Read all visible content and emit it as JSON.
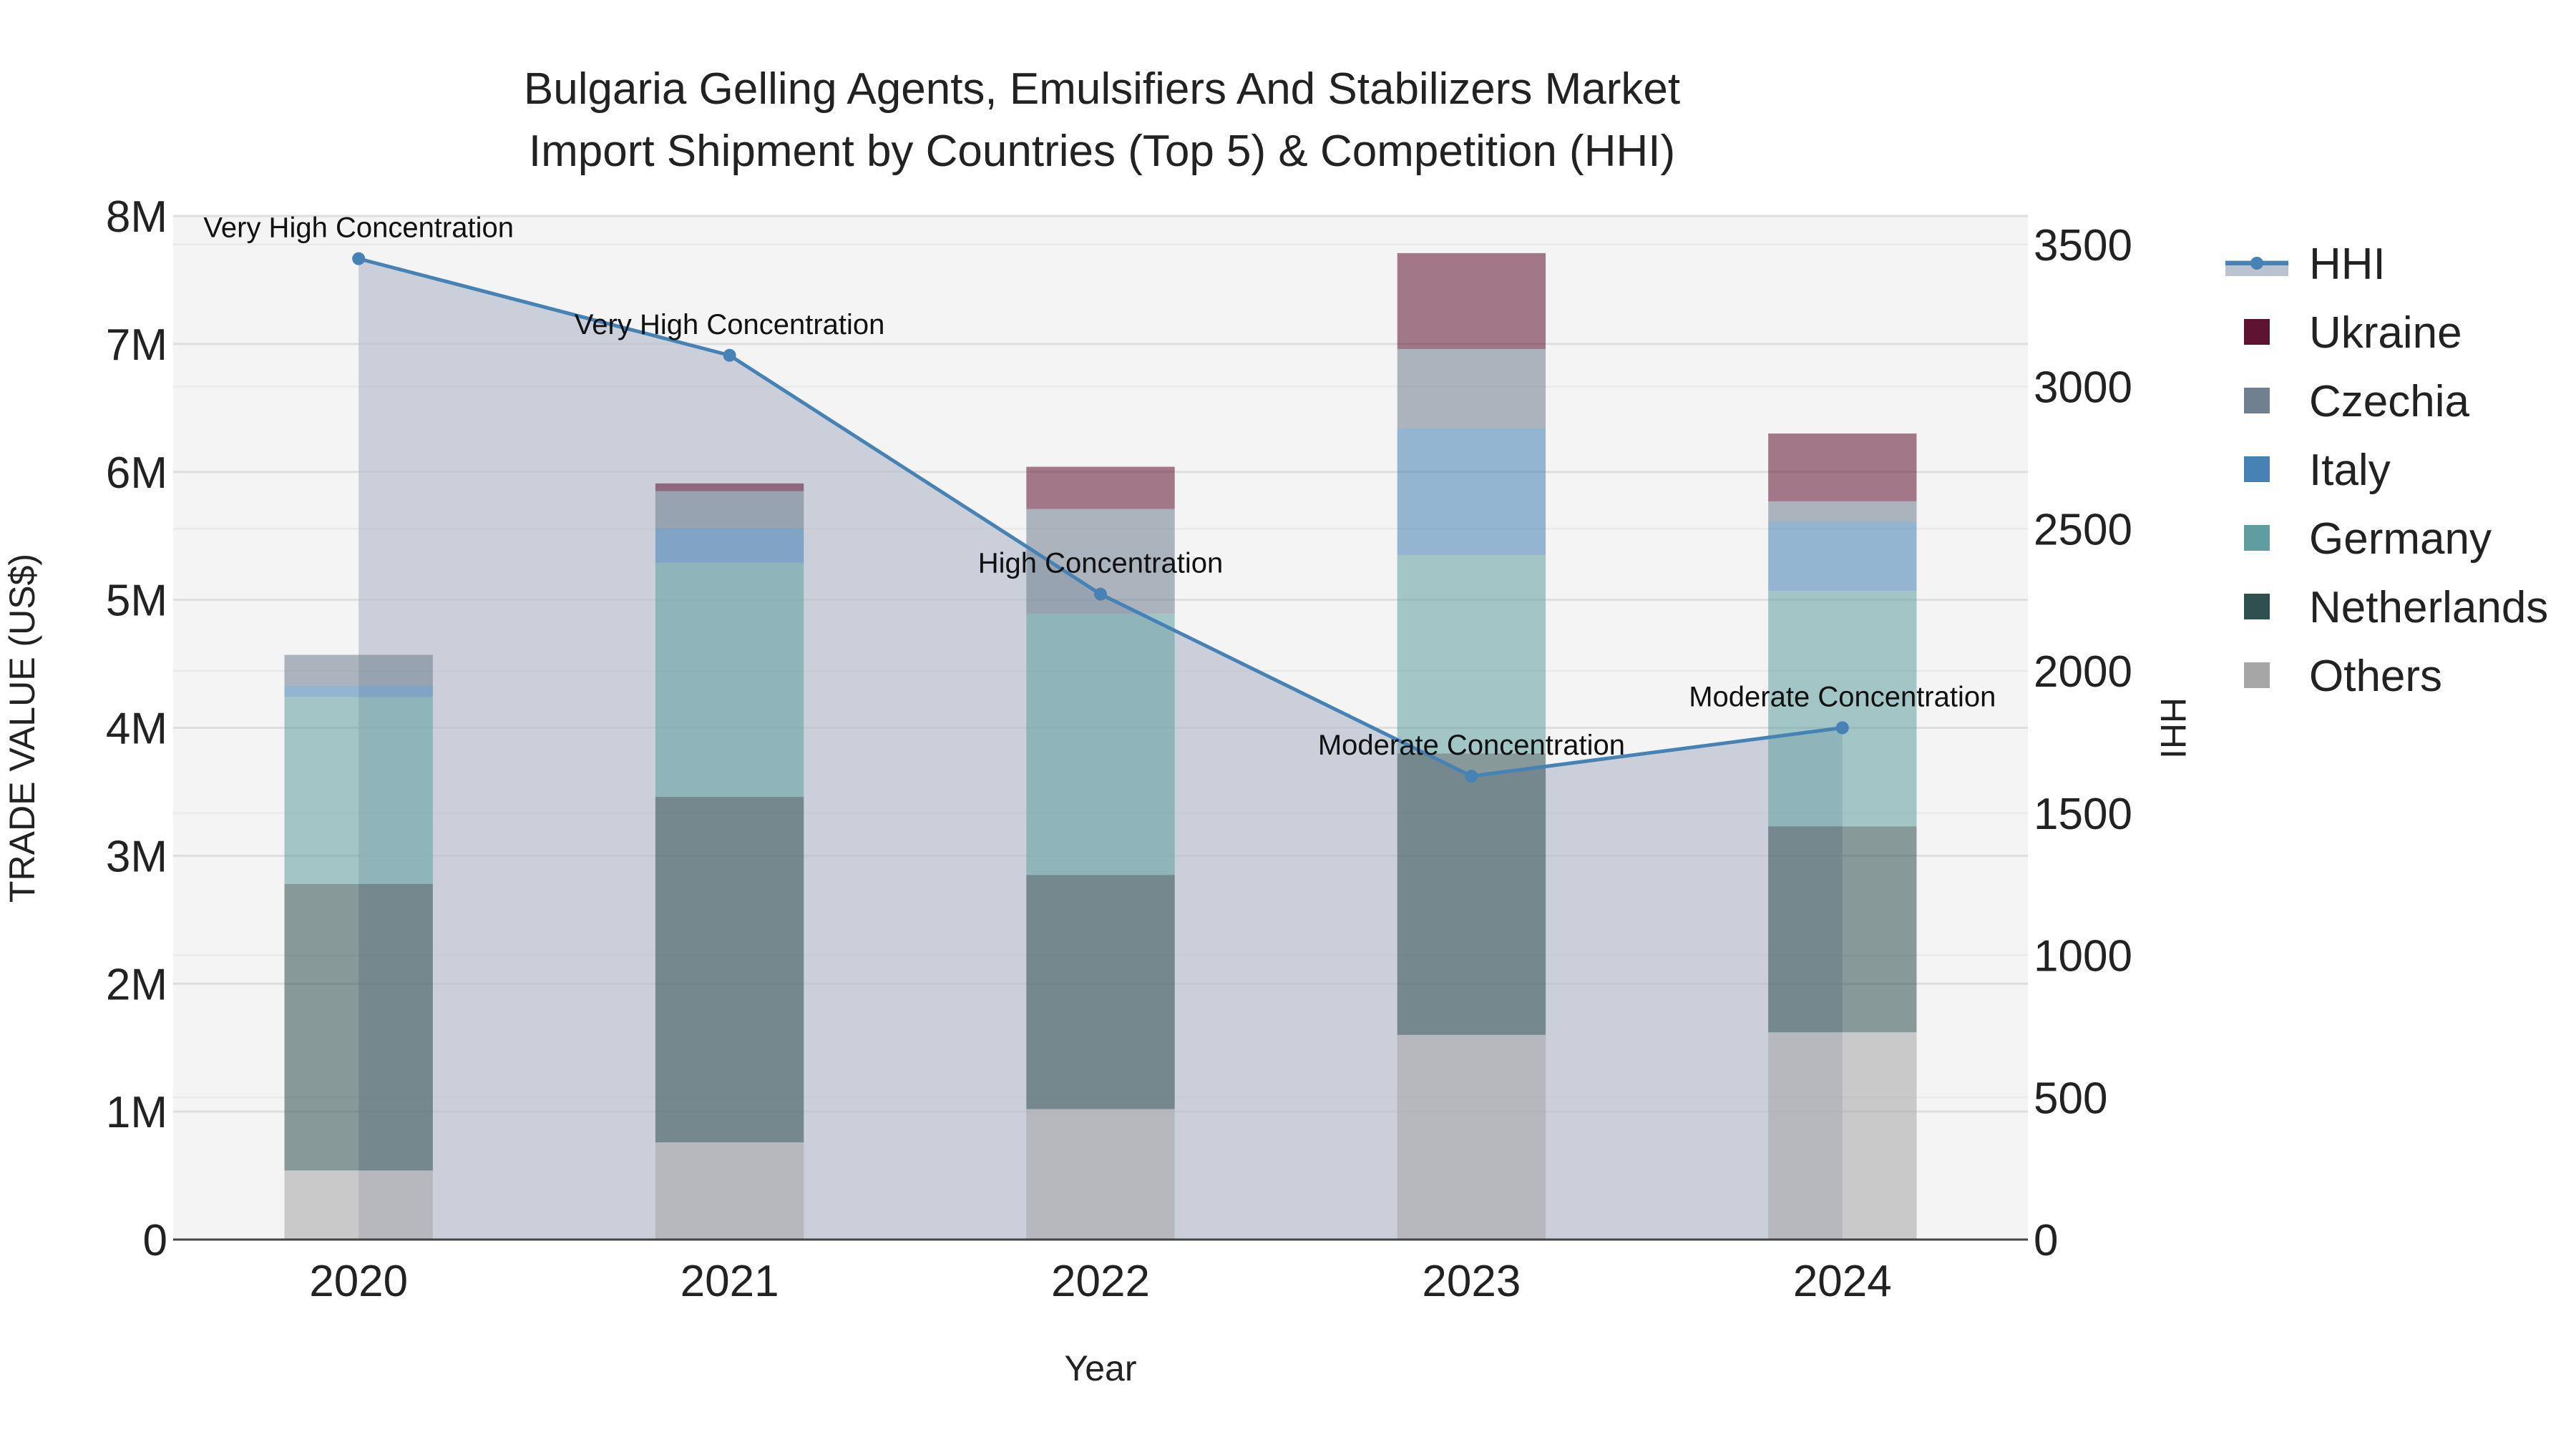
{
  "chart_data": {
    "type": "bar",
    "stacked": true,
    "title_line1": "Bulgaria Gelling Agents, Emulsifiers And Stabilizers Market",
    "title_line2": "Import Shipment by Countries (Top 5) & Competition (HHI)",
    "xlabel": "Year",
    "ylabel": "TRADE VALUE (US$)",
    "y2label": "HHI",
    "categories": [
      "2020",
      "2021",
      "2022",
      "2023",
      "2024"
    ],
    "ylim": [
      0,
      8000000
    ],
    "y_ticks": [
      0,
      1000000,
      2000000,
      3000000,
      4000000,
      5000000,
      6000000,
      7000000,
      8000000
    ],
    "y_tick_labels": [
      "0",
      "1M",
      "2M",
      "3M",
      "4M",
      "5M",
      "6M",
      "7M",
      "8M"
    ],
    "y2lim": [
      0,
      3600
    ],
    "y2_ticks": [
      0,
      500,
      1000,
      1500,
      2000,
      2500,
      3000,
      3500
    ],
    "y2_tick_labels": [
      "0",
      "500",
      "1000",
      "1500",
      "2000",
      "2500",
      "3000",
      "3500"
    ],
    "series": [
      {
        "name": "Others",
        "color": "#a6a6a6",
        "values": [
          540000,
          760000,
          1020000,
          1600000,
          1620000
        ]
      },
      {
        "name": "Netherlands",
        "color": "#2f4f4f",
        "values": [
          2240000,
          2700000,
          1830000,
          2200000,
          1610000
        ]
      },
      {
        "name": "Germany",
        "color": "#5f9ea0",
        "values": [
          1460000,
          1830000,
          2040000,
          1550000,
          1840000
        ]
      },
      {
        "name": "Italy",
        "color": "#4682b4",
        "values": [
          90000,
          270000,
          0,
          990000,
          540000
        ]
      },
      {
        "name": "Czechia",
        "color": "#708090",
        "values": [
          240000,
          290000,
          820000,
          620000,
          160000
        ]
      },
      {
        "name": "Ukraine",
        "color": "#5e1331",
        "values": [
          0,
          60000,
          330000,
          750000,
          530000
        ]
      }
    ],
    "hhi": {
      "name": "HHI",
      "color": "#4682b4",
      "fill": "#b4bccb",
      "values": [
        3450,
        3110,
        2270,
        1630,
        1800
      ],
      "annotations": [
        "Very High Concentration",
        "Very High Concentration",
        "High Concentration",
        "Moderate Concentration",
        "Moderate Concentration"
      ]
    },
    "legend": [
      "HHI",
      "Ukraine",
      "Czechia",
      "Italy",
      "Germany",
      "Netherlands",
      "Others"
    ],
    "legend_position": "right"
  }
}
